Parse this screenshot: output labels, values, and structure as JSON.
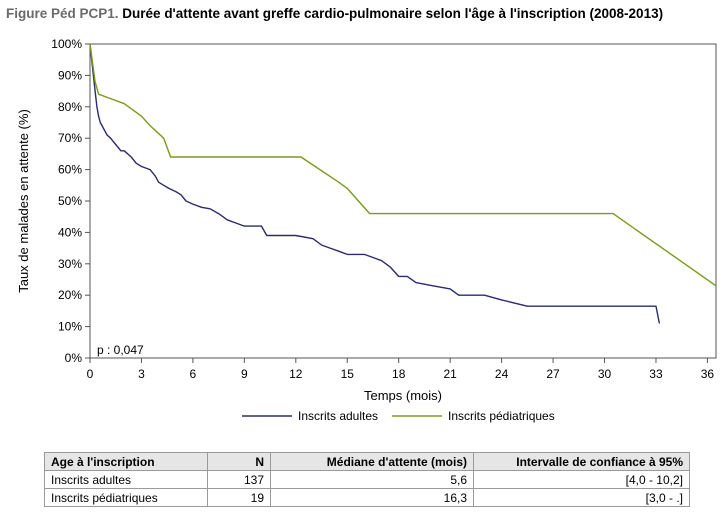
{
  "figure": {
    "label": "Figure Péd PCP1.",
    "title": "Durée d'attente avant greffe cardio-pulmonaire selon l'âge à l'inscription (2008-2013)"
  },
  "chart_data": {
    "type": "line",
    "xlabel": "Temps (mois)",
    "ylabel": "Taux de malades en attente (%)",
    "xlim": [
      0,
      36.5
    ],
    "ylim": [
      0,
      100
    ],
    "xticks": [
      0,
      3,
      6,
      9,
      12,
      15,
      18,
      21,
      24,
      27,
      30,
      33,
      36
    ],
    "yticks": [
      0,
      10,
      20,
      30,
      40,
      50,
      60,
      70,
      80,
      90,
      100
    ],
    "ytick_labels": [
      "0%",
      "10%",
      "20%",
      "30%",
      "40%",
      "50%",
      "60%",
      "70%",
      "80%",
      "90%",
      "100%"
    ],
    "annotation": "p : 0,047",
    "legend_position": "bottom",
    "series": [
      {
        "name": "Inscrits adultes",
        "color": "#2b2b6e",
        "x": [
          0,
          0.1,
          0.2,
          0.3,
          0.4,
          0.5,
          0.6,
          0.8,
          1.0,
          1.2,
          1.5,
          1.8,
          2.0,
          2.4,
          2.7,
          3.0,
          3.5,
          3.8,
          4.0,
          4.3,
          4.6,
          5.0,
          5.3,
          5.6,
          6.0,
          6.5,
          7.0,
          7.5,
          8.0,
          8.5,
          9.0,
          9.5,
          10.0,
          10.3,
          11.0,
          12.0,
          13.0,
          13.5,
          14.0,
          14.5,
          15.0,
          16.0,
          16.5,
          17.0,
          17.5,
          18.0,
          18.5,
          19.0,
          20.0,
          21.0,
          21.5,
          22.0,
          23.0,
          24.0,
          25.5,
          26.0,
          28.0,
          30.0,
          33.0,
          33.2
        ],
        "y": [
          100,
          95,
          90,
          85,
          80,
          77,
          75,
          73,
          71,
          70,
          68,
          66,
          66,
          64,
          62,
          61,
          60,
          58,
          56,
          55,
          54,
          53,
          52,
          50,
          49,
          48,
          47.5,
          46,
          44,
          43,
          42,
          42,
          42,
          39,
          39,
          39,
          38,
          36,
          35,
          34,
          33,
          33,
          32,
          31,
          29,
          26,
          26,
          24,
          23,
          22,
          20,
          20,
          20,
          18.5,
          16.5,
          16.5,
          16.5,
          16.5,
          16.5,
          11
        ]
      },
      {
        "name": "Inscrits pédiatriques",
        "color": "#7a9a1e",
        "x": [
          0,
          0.3,
          0.5,
          1.0,
          2.0,
          3.0,
          3.5,
          4.3,
          4.7,
          5.0,
          6.0,
          9.0,
          12.0,
          12.3,
          14.5,
          15.0,
          16.3,
          18.0,
          21.0,
          24.0,
          27.0,
          30.0,
          30.5,
          36.5
        ],
        "y": [
          100,
          88,
          84,
          83,
          81,
          77,
          74,
          70,
          64,
          64,
          64,
          64,
          64,
          64,
          56,
          54,
          46,
          46,
          46,
          46,
          46,
          46,
          46,
          23
        ]
      }
    ]
  },
  "table": {
    "headers": [
      "Age à l'inscription",
      "N",
      "Médiane d'attente (mois)",
      "Intervalle de confiance à 95%"
    ],
    "rows": [
      [
        "Inscrits adultes",
        "137",
        "5,6",
        "[4,0 - 10,2]"
      ],
      [
        "Inscrits pédiatriques",
        "19",
        "16,3",
        "[3,0 - .]"
      ]
    ]
  }
}
